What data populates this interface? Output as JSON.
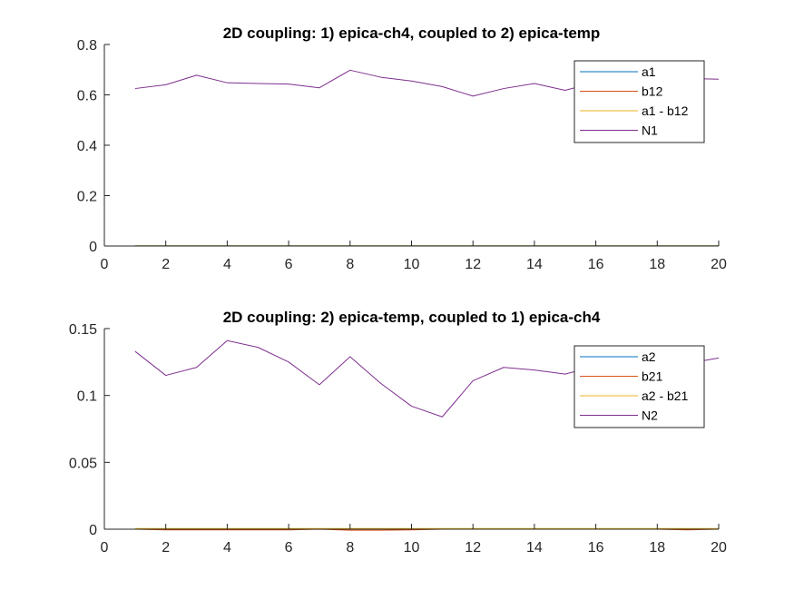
{
  "chart_data": [
    {
      "type": "line",
      "title": "2D coupling: 1) epica-ch4, coupled to 2) epica-temp",
      "xlabel": "",
      "ylabel": "",
      "xlim": [
        0,
        20
      ],
      "ylim": [
        0,
        0.8
      ],
      "xticks": [
        0,
        2,
        4,
        6,
        8,
        10,
        12,
        14,
        16,
        18,
        20
      ],
      "yticks": [
        0,
        0.2,
        0.4,
        0.6,
        0.8
      ],
      "xtick_labels": [
        "0",
        "2",
        "4",
        "6",
        "8",
        "10",
        "12",
        "14",
        "16",
        "18",
        "20"
      ],
      "ytick_labels": [
        "0",
        "0.2",
        "0.4",
        "0.6",
        "0.8"
      ],
      "grid": false,
      "legend_position": "top-right",
      "x": [
        1,
        2,
        3,
        4,
        5,
        6,
        7,
        8,
        9,
        10,
        11,
        12,
        13,
        14,
        15,
        16,
        17,
        18,
        19,
        20
      ],
      "series": [
        {
          "name": "a1",
          "color": "#0072BD",
          "values": [
            0.001,
            0.001,
            0.001,
            0.001,
            0.001,
            0.001,
            0.001,
            0.001,
            0.001,
            0.001,
            0.001,
            0.001,
            0.001,
            0.001,
            0.001,
            0.001,
            0.001,
            0.001,
            0.001,
            0.001
          ]
        },
        {
          "name": "b12",
          "color": "#D95319",
          "values": [
            0.0,
            0.0,
            0.0,
            0.0,
            0.0,
            0.0,
            0.0,
            0.0,
            0.0,
            0.0,
            0.0,
            0.0,
            0.0,
            0.0,
            0.0,
            0.0,
            0.0,
            0.0,
            0.0,
            0.0
          ]
        },
        {
          "name": "a1 - b12",
          "color": "#EDB120",
          "values": [
            0.001,
            0.001,
            0.001,
            0.001,
            0.001,
            0.001,
            0.001,
            0.001,
            0.001,
            0.001,
            0.001,
            0.001,
            0.001,
            0.001,
            0.001,
            0.001,
            0.001,
            0.001,
            0.001,
            0.001
          ]
        },
        {
          "name": "N1",
          "color": "#7E2F8E",
          "values": [
            0.625,
            0.64,
            0.678,
            0.648,
            0.645,
            0.643,
            0.628,
            0.698,
            0.67,
            0.655,
            0.633,
            0.595,
            0.625,
            0.645,
            0.618,
            0.65,
            0.655,
            0.66,
            0.665,
            0.662
          ]
        }
      ]
    },
    {
      "type": "line",
      "title": "2D coupling: 2) epica-temp, coupled to 1) epica-ch4",
      "xlabel": "",
      "ylabel": "",
      "xlim": [
        0,
        20
      ],
      "ylim": [
        0,
        0.15
      ],
      "xticks": [
        0,
        2,
        4,
        6,
        8,
        10,
        12,
        14,
        16,
        18,
        20
      ],
      "yticks": [
        0,
        0.05,
        0.1,
        0.15
      ],
      "xtick_labels": [
        "0",
        "2",
        "4",
        "6",
        "8",
        "10",
        "12",
        "14",
        "16",
        "18",
        "20"
      ],
      "ytick_labels": [
        "0",
        "0.05",
        "0.1",
        "0.15"
      ],
      "grid": false,
      "legend_position": "top-right",
      "x": [
        1,
        2,
        3,
        4,
        5,
        6,
        7,
        8,
        9,
        10,
        11,
        12,
        13,
        14,
        15,
        16,
        17,
        18,
        19,
        20
      ],
      "series": [
        {
          "name": "a2",
          "color": "#0072BD",
          "values": [
            0.0,
            0.0,
            0.0,
            0.0,
            0.0,
            0.0,
            0.0,
            0.0,
            0.0,
            0.0,
            0.0,
            0.0,
            0.0,
            0.0,
            0.0,
            0.0,
            0.0,
            0.0,
            0.0,
            0.0
          ]
        },
        {
          "name": "b21",
          "color": "#D95319",
          "values": [
            0.0,
            -0.0005,
            -0.0005,
            -0.0005,
            -0.0005,
            -0.0005,
            0.0,
            -0.0008,
            -0.0008,
            -0.0005,
            0.0,
            0.0,
            0.0,
            0.0,
            0.0,
            0.0,
            0.0,
            0.0,
            -0.0005,
            0.0
          ]
        },
        {
          "name": "a2 - b21",
          "color": "#EDB120",
          "values": [
            0.0005,
            0.0005,
            0.0005,
            0.0005,
            0.0005,
            0.0005,
            0.0005,
            0.0005,
            0.0005,
            0.0005,
            0.0005,
            0.0005,
            0.0005,
            0.0005,
            0.0005,
            0.0005,
            0.0005,
            0.0005,
            0.0005,
            0.0005
          ]
        },
        {
          "name": "N2",
          "color": "#7E2F8E",
          "values": [
            0.133,
            0.115,
            0.121,
            0.141,
            0.136,
            0.125,
            0.108,
            0.129,
            0.109,
            0.092,
            0.084,
            0.111,
            0.121,
            0.119,
            0.116,
            0.122,
            0.126,
            0.124,
            0.124,
            0.128
          ]
        }
      ]
    }
  ]
}
